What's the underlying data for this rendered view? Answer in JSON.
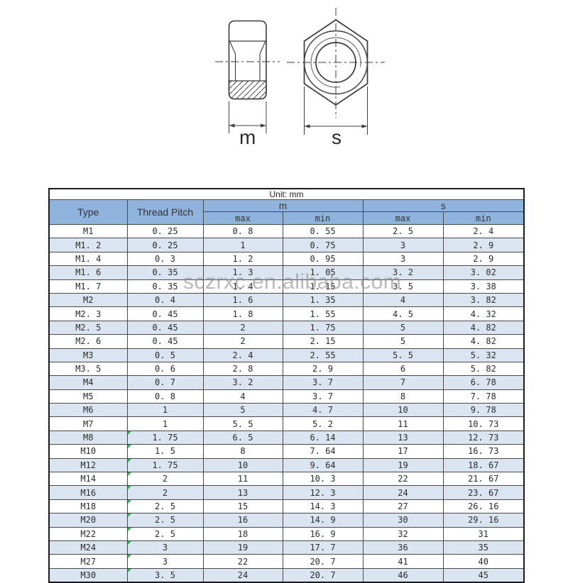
{
  "drawing": {
    "left_dim_label": "m",
    "right_dim_label": "s"
  },
  "watermark": "sczrxc.en.alibaba.com",
  "table": {
    "unit_note": "Unit: mm",
    "headers": {
      "type": "Type",
      "thread_pitch": "Thread Pitch",
      "m_group": "m",
      "s_group": "s",
      "max": "max",
      "min": "min"
    },
    "rows": [
      {
        "type": "M1",
        "pitch": "0. 25",
        "m_max": "0. 8",
        "m_min": "0. 55",
        "s_max": "2. 5",
        "s_min": "2. 4",
        "flag": false
      },
      {
        "type": "M1. 2",
        "pitch": "0. 25",
        "m_max": "1",
        "m_min": "0. 75",
        "s_max": "3",
        "s_min": "2. 9",
        "flag": false
      },
      {
        "type": "M1. 4",
        "pitch": "0. 3",
        "m_max": "1. 2",
        "m_min": "0. 95",
        "s_max": "3",
        "s_min": "2. 9",
        "flag": false
      },
      {
        "type": "M1. 6",
        "pitch": "0. 35",
        "m_max": "1. 3",
        "m_min": "1. 05",
        "s_max": "3. 2",
        "s_min": "3. 02",
        "flag": false
      },
      {
        "type": "M1. 7",
        "pitch": "0. 35",
        "m_max": "1. 4",
        "m_min": "1. 15",
        "s_max": "3. 5",
        "s_min": "3. 38",
        "flag": false
      },
      {
        "type": "M2",
        "pitch": "0. 4",
        "m_max": "1. 6",
        "m_min": "1. 35",
        "s_max": "4",
        "s_min": "3. 82",
        "flag": false
      },
      {
        "type": "M2. 3",
        "pitch": "0. 45",
        "m_max": "1. 8",
        "m_min": "1. 55",
        "s_max": "4. 5",
        "s_min": "4. 32",
        "flag": false
      },
      {
        "type": "M2. 5",
        "pitch": "0. 45",
        "m_max": "2",
        "m_min": "1. 75",
        "s_max": "5",
        "s_min": "4. 82",
        "flag": false
      },
      {
        "type": "M2. 6",
        "pitch": "0. 45",
        "m_max": "2",
        "m_min": "2. 15",
        "s_max": "5",
        "s_min": "4. 82",
        "flag": false
      },
      {
        "type": "M3",
        "pitch": "0. 5",
        "m_max": "2. 4",
        "m_min": "2. 55",
        "s_max": "5. 5",
        "s_min": "5. 32",
        "flag": false
      },
      {
        "type": "M3. 5",
        "pitch": "0. 6",
        "m_max": "2. 8",
        "m_min": "2. 9",
        "s_max": "6",
        "s_min": "5. 82",
        "flag": false
      },
      {
        "type": "M4",
        "pitch": "0. 7",
        "m_max": "3. 2",
        "m_min": "3. 7",
        "s_max": "7",
        "s_min": "6. 78",
        "flag": false
      },
      {
        "type": "M5",
        "pitch": "0. 8",
        "m_max": "4",
        "m_min": "3. 7",
        "s_max": "8",
        "s_min": "7. 78",
        "flag": false
      },
      {
        "type": "M6",
        "pitch": "1",
        "m_max": "5",
        "m_min": "4. 7",
        "s_max": "10",
        "s_min": "9. 78",
        "flag": false
      },
      {
        "type": "M7",
        "pitch": "1",
        "m_max": "5. 5",
        "m_min": "5. 2",
        "s_max": "11",
        "s_min": "10. 73",
        "flag": false
      },
      {
        "type": "M8",
        "pitch": "1. 75",
        "m_max": "6. 5",
        "m_min": "6. 14",
        "s_max": "13",
        "s_min": "12. 73",
        "flag": true
      },
      {
        "type": "M10",
        "pitch": "1. 5",
        "m_max": "8",
        "m_min": "7. 64",
        "s_max": "17",
        "s_min": "16. 73",
        "flag": true
      },
      {
        "type": "M12",
        "pitch": "1. 75",
        "m_max": "10",
        "m_min": "9. 64",
        "s_max": "19",
        "s_min": "18. 67",
        "flag": true
      },
      {
        "type": "M14",
        "pitch": "2",
        "m_max": "11",
        "m_min": "10. 3",
        "s_max": "22",
        "s_min": "21. 67",
        "flag": true
      },
      {
        "type": "M16",
        "pitch": "2",
        "m_max": "13",
        "m_min": "12. 3",
        "s_max": "24",
        "s_min": "23. 67",
        "flag": true
      },
      {
        "type": "M18",
        "pitch": "2. 5",
        "m_max": "15",
        "m_min": "14. 3",
        "s_max": "27",
        "s_min": "26. 16",
        "flag": true
      },
      {
        "type": "M20",
        "pitch": "2. 5",
        "m_max": "16",
        "m_min": "14. 9",
        "s_max": "30",
        "s_min": "29. 16",
        "flag": true
      },
      {
        "type": "M22",
        "pitch": "2. 5",
        "m_max": "18",
        "m_min": "16. 9",
        "s_max": "32",
        "s_min": "31",
        "flag": true
      },
      {
        "type": "M24",
        "pitch": "3",
        "m_max": "19",
        "m_min": "17. 7",
        "s_max": "36",
        "s_min": "35",
        "flag": true
      },
      {
        "type": "M27",
        "pitch": "3",
        "m_max": "22",
        "m_min": "20. 7",
        "s_max": "41",
        "s_min": "40",
        "flag": true
      },
      {
        "type": "M30",
        "pitch": "3. 5",
        "m_max": "24",
        "m_min": "20. 7",
        "s_max": "46",
        "s_min": "45",
        "flag": true
      }
    ]
  },
  "colors": {
    "header_bg": "#8fb3dc",
    "row_alt_bg": "#dbe5f1",
    "flag_green": "#2fae4a",
    "watermark_gray": "#8f8f8f",
    "line_dark": "#3a3a3a"
  }
}
